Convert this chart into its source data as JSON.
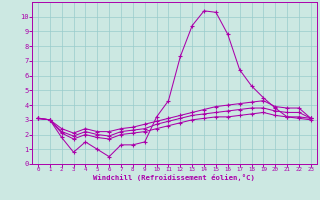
{
  "xlabel": "Windchill (Refroidissement éolien,°C)",
  "x": [
    0,
    1,
    2,
    3,
    4,
    5,
    6,
    7,
    8,
    9,
    10,
    11,
    12,
    13,
    14,
    15,
    16,
    17,
    18,
    19,
    20,
    21,
    22,
    23
  ],
  "series1": [
    3.1,
    3.0,
    1.8,
    0.8,
    1.5,
    1.0,
    0.5,
    1.3,
    1.3,
    1.5,
    3.2,
    4.3,
    7.3,
    9.4,
    10.4,
    10.3,
    8.8,
    6.4,
    5.3,
    4.5,
    3.8,
    3.2,
    3.1,
    3.0
  ],
  "series2": [
    3.1,
    3.0,
    2.1,
    1.7,
    2.0,
    1.8,
    1.7,
    2.0,
    2.1,
    2.2,
    2.4,
    2.6,
    2.8,
    3.0,
    3.1,
    3.2,
    3.2,
    3.3,
    3.4,
    3.5,
    3.3,
    3.2,
    3.2,
    3.1
  ],
  "series3": [
    3.1,
    3.0,
    2.2,
    1.9,
    2.2,
    2.0,
    1.9,
    2.2,
    2.3,
    2.4,
    2.7,
    2.9,
    3.1,
    3.3,
    3.4,
    3.5,
    3.6,
    3.7,
    3.8,
    3.8,
    3.6,
    3.5,
    3.5,
    3.1
  ],
  "series4": [
    3.1,
    3.0,
    2.4,
    2.1,
    2.4,
    2.2,
    2.2,
    2.4,
    2.5,
    2.7,
    2.9,
    3.1,
    3.3,
    3.5,
    3.7,
    3.9,
    4.0,
    4.1,
    4.2,
    4.3,
    3.9,
    3.8,
    3.8,
    3.1
  ],
  "line_color": "#aa00aa",
  "bg_color": "#cce8e2",
  "grid_color": "#99cccc",
  "ylim": [
    0,
    11
  ],
  "yticks": [
    0,
    1,
    2,
    3,
    4,
    5,
    6,
    7,
    8,
    9,
    10
  ],
  "xticks": [
    0,
    1,
    2,
    3,
    4,
    5,
    6,
    7,
    8,
    9,
    10,
    11,
    12,
    13,
    14,
    15,
    16,
    17,
    18,
    19,
    20,
    21,
    22,
    23
  ]
}
